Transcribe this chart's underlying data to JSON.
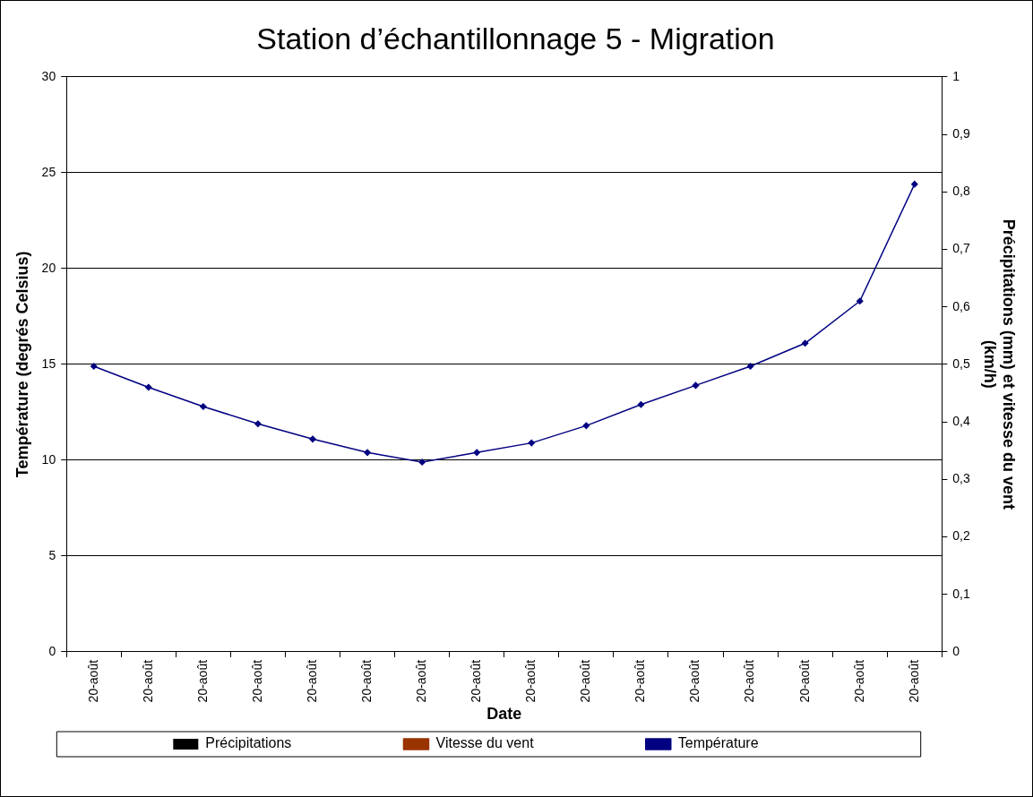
{
  "chart_data": {
    "type": "line",
    "title": "Station d’échantillonnage 5 - Migration",
    "xlabel": "Date",
    "ylabel": "Température (degrés Celsius)",
    "y2label": "Précipitations (mm) et vitesse du vent (km/h)",
    "categories": [
      "20-août",
      "20-août",
      "20-août",
      "20-août",
      "20-août",
      "20-août",
      "20-août",
      "20-août",
      "20-août",
      "20-août",
      "20-août",
      "20-août",
      "20-août",
      "20-août",
      "20-août",
      "20-août"
    ],
    "series": [
      {
        "name": "Précipitations",
        "type": "bar",
        "color": "#000000",
        "values": [
          null,
          null,
          null,
          null,
          null,
          null,
          null,
          null,
          null,
          null,
          null,
          null,
          null,
          null,
          null,
          null
        ]
      },
      {
        "name": "Vitesse du vent",
        "type": "line",
        "color": "#993300",
        "marker": "circle",
        "values": [
          null,
          null,
          null,
          null,
          null,
          null,
          null,
          null,
          null,
          null,
          null,
          null,
          null,
          null,
          null,
          null
        ]
      },
      {
        "name": "Température",
        "color": "#000080",
        "marker": "diamond",
        "values": [
          14.9,
          13.8,
          12.8,
          11.9,
          11.1,
          10.4,
          9.9,
          10.4,
          10.9,
          11.8,
          12.9,
          13.9,
          14.9,
          16.1,
          18.3,
          24.4
        ]
      }
    ],
    "ylim": [
      0,
      30
    ],
    "yticks": [
      0,
      5,
      10,
      15,
      20,
      25,
      30
    ],
    "y2lim": [
      0,
      1
    ],
    "y2ticks": [
      0,
      {
        "value": 0.1,
        "label": "0,1"
      },
      {
        "value": 0.2,
        "label": "0,2"
      },
      {
        "value": 0.3,
        "label": "0,3"
      },
      {
        "value": 0.4,
        "label": "0,4"
      },
      {
        "value": 0.5,
        "label": "0,5"
      },
      {
        "value": 0.6,
        "label": "0,6"
      },
      {
        "value": 0.7,
        "label": "0,7"
      },
      {
        "value": 0.8,
        "label": "0,8"
      },
      {
        "value": 0.9,
        "label": "0,9"
      },
      1
    ],
    "grid": "y",
    "legend": "bottom"
  }
}
